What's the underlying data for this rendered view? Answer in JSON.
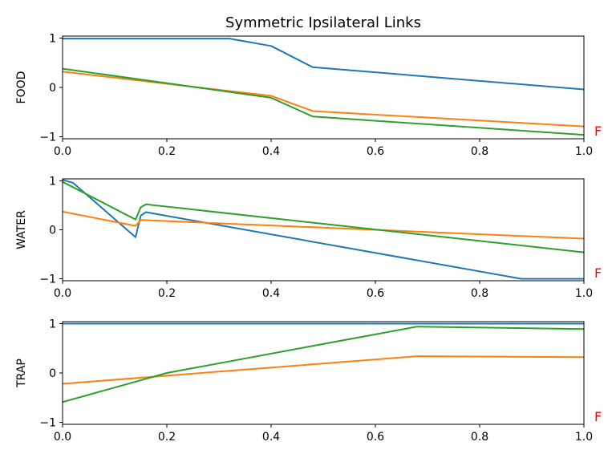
{
  "chart_data": {
    "type": "line",
    "title": "Symmetric Ipsilateral Links",
    "colors": [
      "#1f77b4",
      "#ff7f0e",
      "#2ca02c"
    ],
    "marker_color": "#ff0000",
    "grid": false,
    "legend": "none",
    "panels": [
      {
        "ylabel": "FOOD",
        "marker": "F",
        "xlim": [
          0,
          1
        ],
        "ylim": [
          -1.04,
          1.04
        ],
        "xticks": [
          0.0,
          0.2,
          0.4,
          0.6,
          0.8,
          1.0
        ],
        "xtick_labels": [
          "0.0",
          "0.2",
          "0.4",
          "0.6",
          "0.8",
          "1.0"
        ],
        "yticks": [
          1,
          0,
          -1
        ],
        "ytick_labels": [
          "1",
          "0",
          "−1"
        ],
        "series": [
          {
            "x": [
              0.0,
              0.32,
              0.4,
              0.48,
              1.0
            ],
            "y": [
              0.99,
              0.99,
              0.84,
              0.41,
              -0.04
            ]
          },
          {
            "x": [
              0.0,
              0.4,
              0.48,
              1.0
            ],
            "y": [
              0.32,
              -0.17,
              -0.48,
              -0.79
            ]
          },
          {
            "x": [
              0.0,
              0.4,
              0.48,
              1.0
            ],
            "y": [
              0.38,
              -0.21,
              -0.59,
              -0.96
            ]
          }
        ]
      },
      {
        "ylabel": "WATER",
        "marker": "F",
        "xlim": [
          0,
          1
        ],
        "ylim": [
          -1.04,
          1.04
        ],
        "xticks": [
          0.0,
          0.2,
          0.4,
          0.6,
          0.8,
          1.0
        ],
        "xtick_labels": [
          "0.0",
          "0.2",
          "0.4",
          "0.6",
          "0.8",
          "1.0"
        ],
        "yticks": [
          1,
          0,
          -1
        ],
        "ytick_labels": [
          "1",
          "0",
          "−1"
        ],
        "series": [
          {
            "x": [
              0.0,
              0.02,
              0.14,
              0.15,
              0.16,
              0.88,
              1.0
            ],
            "y": [
              1.02,
              0.96,
              -0.15,
              0.29,
              0.36,
              -1.0,
              -1.0
            ]
          },
          {
            "x": [
              0.0,
              0.14,
              0.15,
              1.0
            ],
            "y": [
              0.37,
              0.08,
              0.2,
              -0.18
            ]
          },
          {
            "x": [
              0.0,
              0.14,
              0.15,
              0.16,
              1.0
            ],
            "y": [
              0.98,
              0.21,
              0.46,
              0.52,
              -0.46
            ]
          }
        ]
      },
      {
        "ylabel": "TRAP",
        "marker": "F",
        "xlim": [
          0,
          1
        ],
        "ylim": [
          -1.04,
          1.04
        ],
        "xticks": [
          0.0,
          0.2,
          0.4,
          0.6,
          0.8,
          1.0
        ],
        "xtick_labels": [
          "0.0",
          "0.2",
          "0.4",
          "0.6",
          "0.8",
          "1.0"
        ],
        "yticks": [
          1,
          0,
          -1
        ],
        "ytick_labels": [
          "1",
          "0",
          "−1"
        ],
        "series": [
          {
            "x": [
              0.0,
              1.0
            ],
            "y": [
              1.0,
              1.0
            ]
          },
          {
            "x": [
              0.0,
              0.68,
              1.0
            ],
            "y": [
              -0.22,
              0.34,
              0.32
            ]
          },
          {
            "x": [
              0.0,
              0.2,
              0.68,
              1.0
            ],
            "y": [
              -0.59,
              0.0,
              0.94,
              0.89
            ]
          }
        ]
      }
    ]
  }
}
